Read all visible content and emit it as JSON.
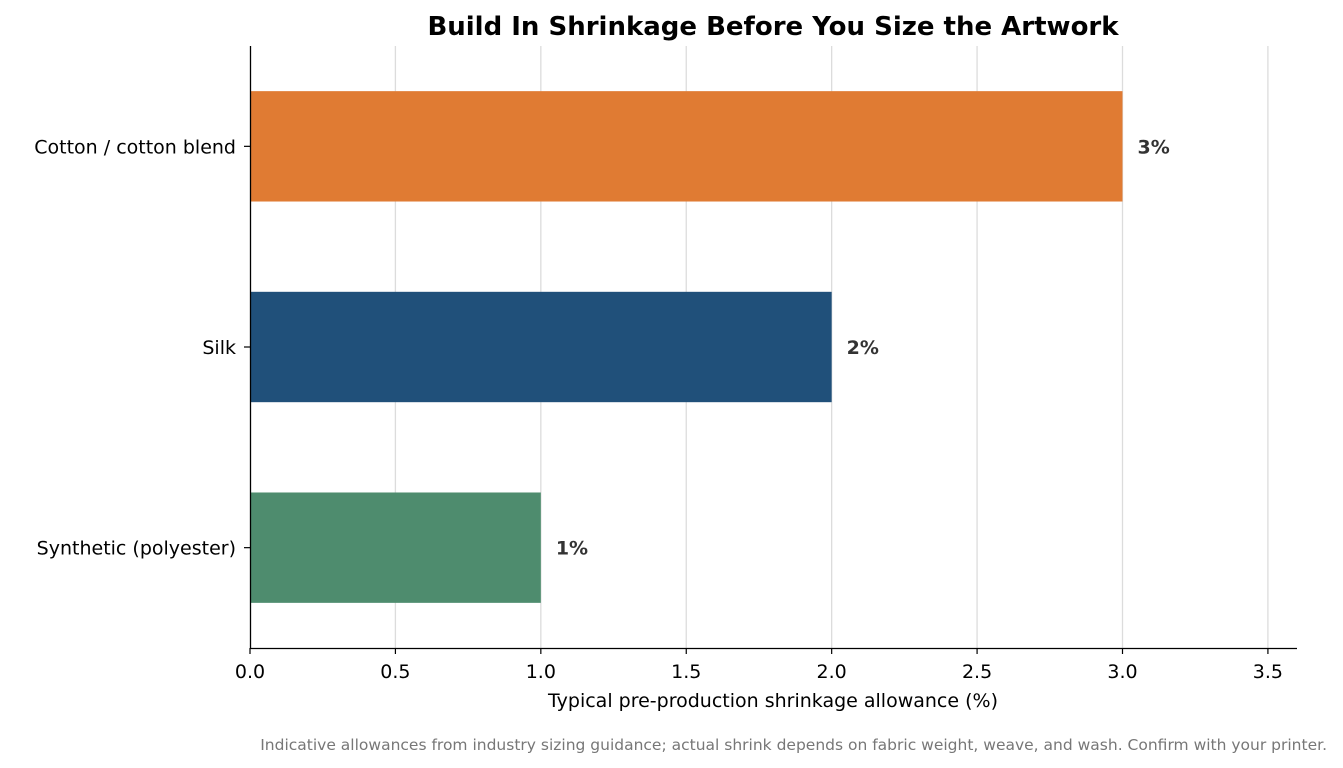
{
  "chart_data": {
    "type": "bar",
    "orientation": "horizontal",
    "title": "Build In Shrinkage Before You Size the Artwork",
    "xlabel": "Typical pre-production shrinkage allowance (%)",
    "ylabel": "",
    "xlim": [
      0,
      3.6
    ],
    "xticks": [
      "0.0",
      "0.5",
      "1.0",
      "1.5",
      "2.0",
      "2.5",
      "3.0",
      "3.5"
    ],
    "xtick_values": [
      0,
      0.5,
      1.0,
      1.5,
      2.0,
      2.5,
      3.0,
      3.5
    ],
    "categories": [
      "Cotton / cotton blend",
      "Silk",
      "Synthetic (polyester)"
    ],
    "values": [
      3,
      2,
      1
    ],
    "data_labels": [
      "3%",
      "2%",
      "1%"
    ],
    "colors": [
      "#e07b33",
      "#20507a",
      "#4e8c6e"
    ],
    "grid": "vertical",
    "legend": "none",
    "footnote": "Indicative allowances from industry sizing guidance; actual shrink depends on fabric weight, weave, and wash. Confirm with your printer."
  }
}
